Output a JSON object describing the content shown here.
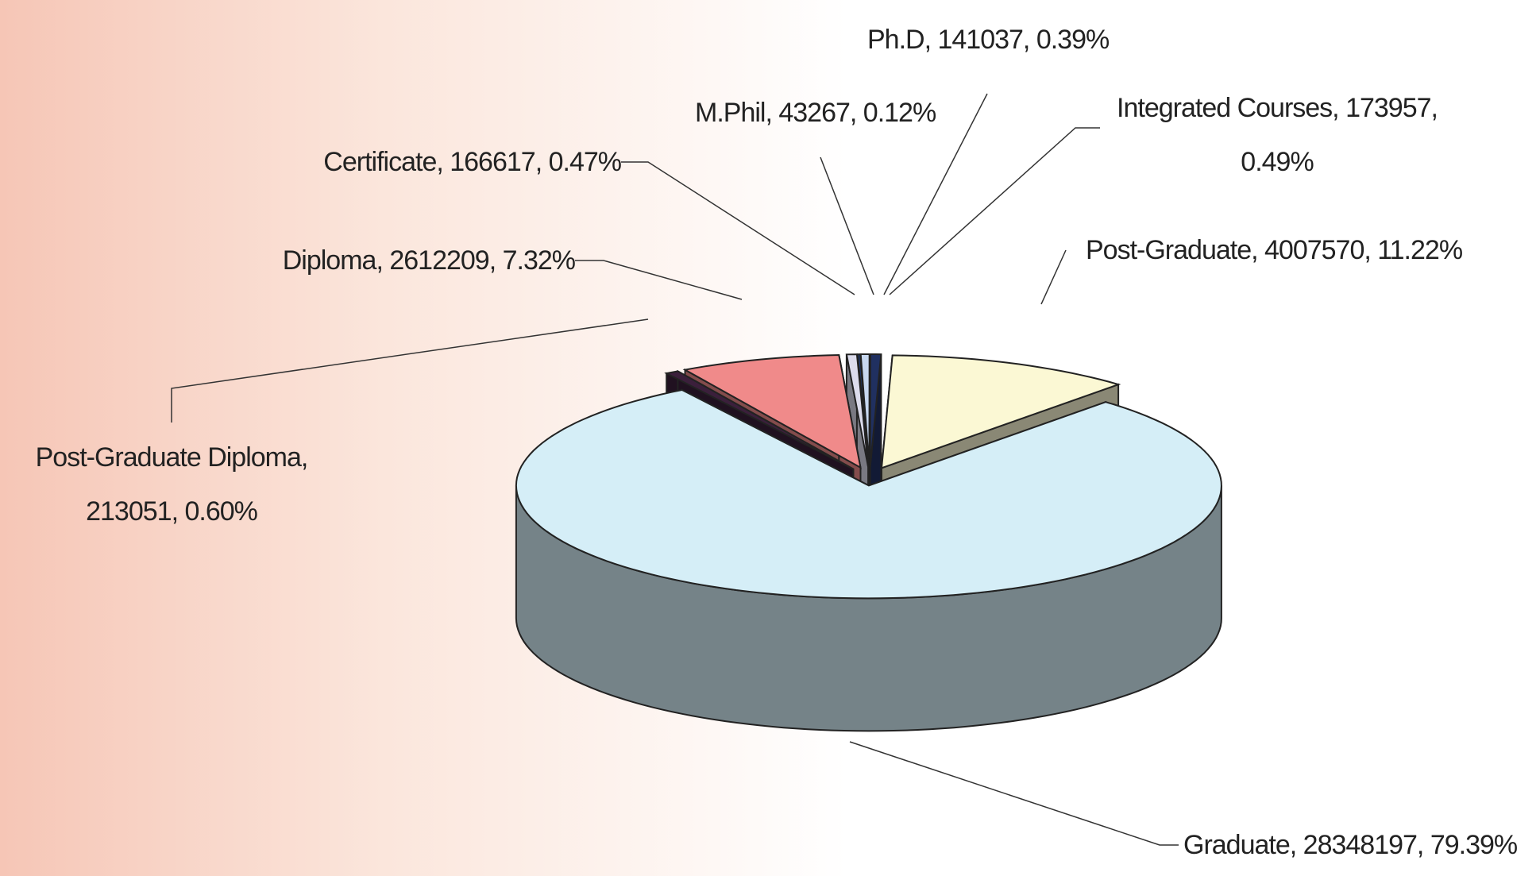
{
  "chart_data": {
    "type": "pie3d",
    "labels": [
      "Post-Graduate Diploma, 213051, 0.60%",
      "Diploma, 2612209, 7.32%",
      "Certificate, 166617, 0.47%",
      "M.Phil, 43267, 0.12%",
      "Ph.D, 141037, 0.39%",
      "Integrated Courses, 173957, 0.49%",
      "Post-Graduate, 4007570, 11.22%",
      "Graduate, 28348197, 79.39%"
    ],
    "values": [
      213051,
      2612209,
      166617,
      43267,
      141037,
      173957,
      4007570,
      28348197
    ],
    "percents": [
      0.6,
      7.32,
      0.47,
      0.12,
      0.39,
      0.49,
      11.22,
      79.39
    ],
    "colors": [
      "#3b1f3b",
      "#f08a8a",
      "#dcdcec",
      "#1f3f7f",
      "#c8d8f0",
      "#203060",
      "#fbf8d4",
      "#d5eef7"
    ]
  }
}
